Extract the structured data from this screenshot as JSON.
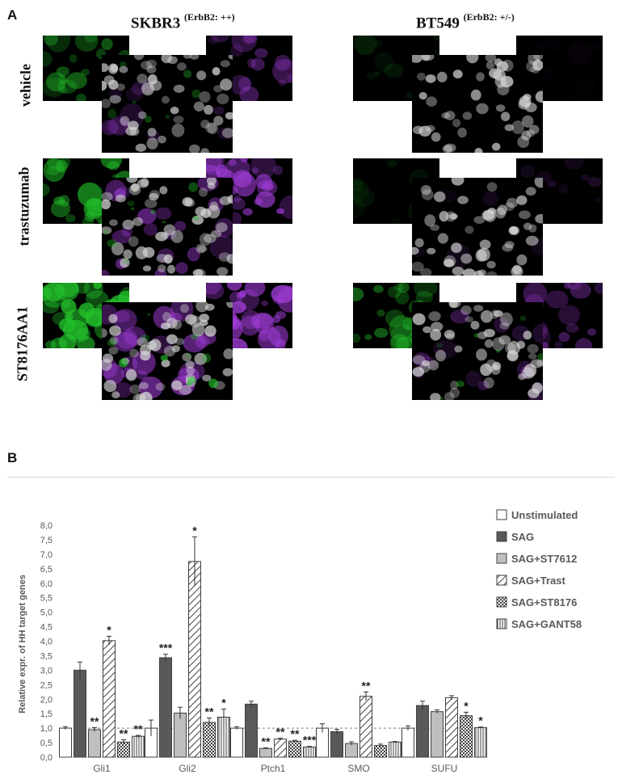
{
  "panel_a": {
    "letter": "A",
    "columns": [
      {
        "cell_line": "SKBR3",
        "superscript": "(ErbB2: ++)"
      },
      {
        "cell_line": "BT549",
        "superscript": "(ErbB2: +/-)"
      }
    ],
    "rows": [
      "vehicle",
      "trastuzumab",
      "ST8176AA1"
    ],
    "colors": {
      "green": "#22c02a",
      "magenta": "#a03cd8",
      "nuclei": "#d6d6d6",
      "background": "#000000"
    },
    "intensity": {
      "green": [
        [
          0.55,
          0.15
        ],
        [
          0.75,
          0.12
        ],
        [
          0.95,
          0.6
        ]
      ],
      "magenta": [
        [
          0.45,
          0.05
        ],
        [
          0.8,
          0.2
        ],
        [
          0.95,
          0.5
        ]
      ]
    }
  },
  "panel_b": {
    "letter": "B",
    "chart_data": {
      "type": "bar",
      "ylabel": "Relative expr. of HH target genes",
      "ylim": [
        0,
        8
      ],
      "yticks": [
        "0,0",
        "0,5",
        "1,0",
        "1,5",
        "2,0",
        "2,5",
        "3,0",
        "3,5",
        "4,0",
        "4,5",
        "5,0",
        "5,5",
        "6,0",
        "6,5",
        "7,0",
        "7,5",
        "8,0"
      ],
      "categories": [
        "Gli1",
        "Gli2",
        "Ptch1",
        "SMO",
        "SUFU"
      ],
      "reference_line": 1.0,
      "legend_position": "top-right",
      "series": [
        {
          "name": "Unstimulated",
          "pattern": "white",
          "values": [
            1.0,
            1.0,
            1.0,
            1.0,
            1.0
          ],
          "errors": [
            0.05,
            0.28,
            0.05,
            0.15,
            0.08
          ],
          "stars": [
            "",
            "",
            "",
            "",
            ""
          ]
        },
        {
          "name": "SAG",
          "pattern": "dark",
          "values": [
            3.0,
            3.43,
            1.83,
            0.88,
            1.78
          ],
          "errors": [
            0.28,
            0.12,
            0.1,
            0.08,
            0.15
          ],
          "stars": [
            "",
            "***",
            "",
            "",
            ""
          ]
        },
        {
          "name": "SAG+ST7612",
          "pattern": "gray",
          "values": [
            0.95,
            1.52,
            0.3,
            0.47,
            1.57
          ],
          "errors": [
            0.07,
            0.2,
            0.02,
            0.06,
            0.06
          ],
          "stars": [
            "**",
            "",
            "**",
            "",
            ""
          ]
        },
        {
          "name": "SAG+Trast",
          "pattern": "diag",
          "values": [
            4.02,
            6.75,
            0.62,
            2.1,
            2.05
          ],
          "errors": [
            0.15,
            0.85,
            0.03,
            0.15,
            0.07
          ],
          "stars": [
            "*",
            "*",
            "**",
            "**",
            ""
          ]
        },
        {
          "name": "SAG+ST8176",
          "pattern": "check",
          "values": [
            0.52,
            1.2,
            0.55,
            0.4,
            1.43
          ],
          "errors": [
            0.08,
            0.15,
            0.03,
            0.05,
            0.12
          ],
          "stars": [
            "**",
            "**",
            "**",
            "",
            "*"
          ]
        },
        {
          "name": "SAG+GANT58",
          "pattern": "vertical",
          "values": [
            0.72,
            1.38,
            0.35,
            0.52,
            1.02
          ],
          "errors": [
            0.03,
            0.28,
            0.02,
            0.02,
            0.02
          ],
          "stars": [
            "**",
            "*",
            "***",
            "",
            "*"
          ]
        }
      ],
      "colors": {
        "dark": "#595959",
        "gray": "#bfbfbf",
        "stroke": "#404040",
        "text": "#595959"
      }
    }
  }
}
